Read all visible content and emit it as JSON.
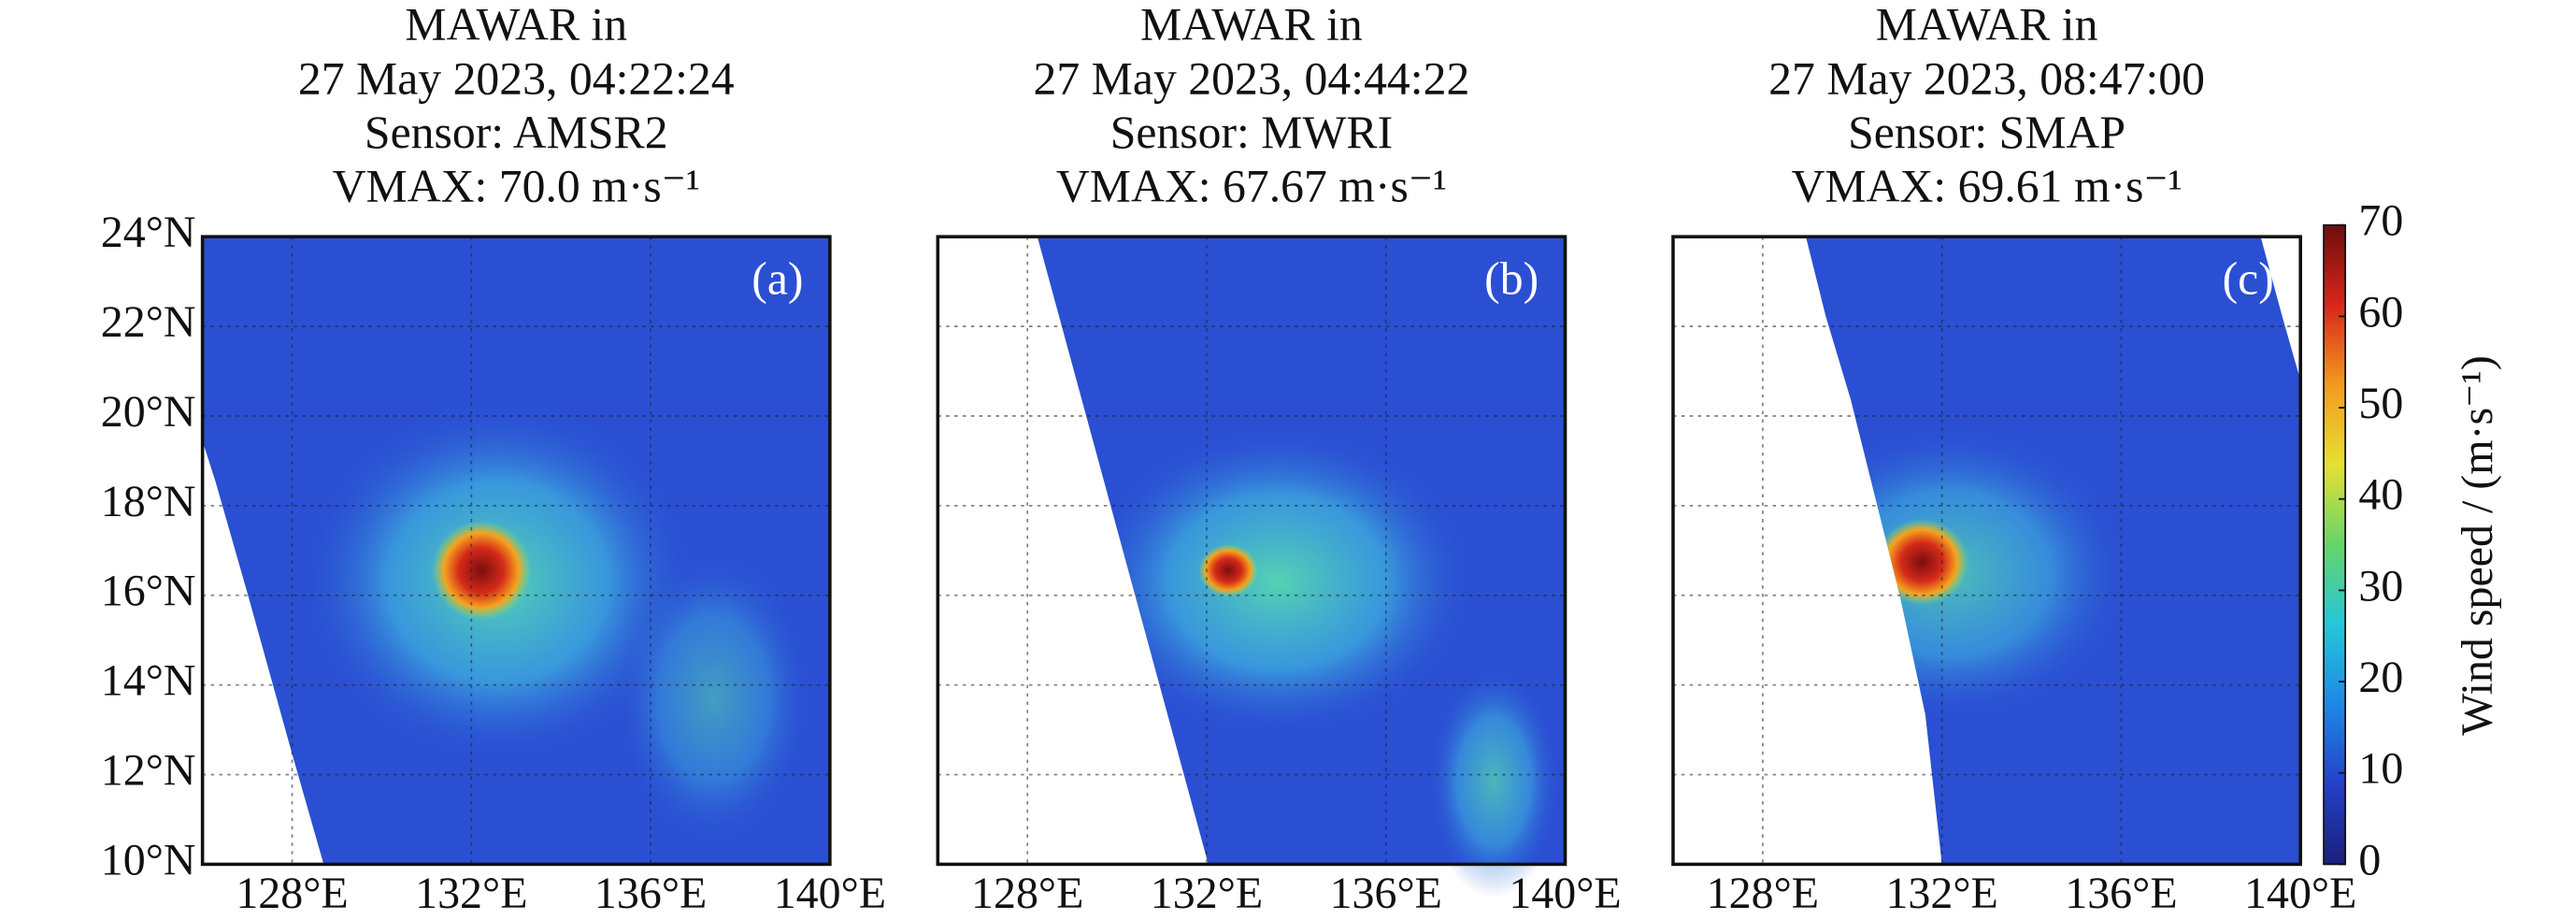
{
  "chart_data": [
    {
      "type": "heatmap",
      "panel_label": "(a)",
      "title_lines": [
        "MAWAR in",
        "27 May 2023, 04:22:24",
        "Sensor: AMSR2",
        "VMAX: 70.0 m·s⁻¹"
      ],
      "xlim": [
        126,
        140
      ],
      "xticks": [
        {
          "value": 128,
          "label": "128°E"
        },
        {
          "value": 132,
          "label": "132°E"
        },
        {
          "value": 136,
          "label": "136°E"
        },
        {
          "value": 140,
          "label": "140°E"
        }
      ],
      "ylim": [
        10,
        24
      ],
      "yticks": [
        {
          "value": 10,
          "label": "10°N"
        },
        {
          "value": 12,
          "label": "12°N"
        },
        {
          "value": 14,
          "label": "14°N"
        },
        {
          "value": 16,
          "label": "16°N"
        },
        {
          "value": 18,
          "label": "18°N"
        },
        {
          "value": 20,
          "label": "20°N"
        },
        {
          "value": 22,
          "label": "22°N"
        },
        {
          "value": 24,
          "label": "24°N"
        }
      ],
      "grid": true
    },
    {
      "type": "heatmap",
      "panel_label": "(b)",
      "title_lines": [
        "MAWAR in",
        "27 May 2023, 04:44:22",
        "Sensor: MWRI",
        "VMAX: 67.67 m·s⁻¹"
      ],
      "xlim": [
        126,
        140
      ],
      "xticks": [
        {
          "value": 128,
          "label": "128°E"
        },
        {
          "value": 132,
          "label": "132°E"
        },
        {
          "value": 136,
          "label": "136°E"
        },
        {
          "value": 140,
          "label": "140°E"
        }
      ],
      "ylim": [
        10,
        24
      ],
      "yticks": [
        10,
        12,
        14,
        16,
        18,
        20,
        22,
        24
      ],
      "grid": true
    },
    {
      "type": "heatmap",
      "panel_label": "(c)",
      "title_lines": [
        "MAWAR in",
        "27 May 2023, 08:47:00",
        "Sensor: SMAP",
        "VMAX: 69.61 m·s⁻¹"
      ],
      "xlim": [
        126,
        140
      ],
      "xticks": [
        {
          "value": 128,
          "label": "128°E"
        },
        {
          "value": 132,
          "label": "132°E"
        },
        {
          "value": 136,
          "label": "136°E"
        },
        {
          "value": 140,
          "label": "140°E"
        }
      ],
      "ylim": [
        10,
        24
      ],
      "yticks": [
        10,
        12,
        14,
        16,
        18,
        20,
        22,
        24
      ],
      "grid": true
    },
    {
      "type": "colorbar",
      "label": "Wind speed / (m·s⁻¹)",
      "ylim": [
        0,
        70
      ],
      "yticks": [
        0,
        10,
        20,
        30,
        40,
        50,
        60,
        70
      ],
      "colormap": [
        "#1a1f7a",
        "#2440c8",
        "#1e88e5",
        "#26c6da",
        "#66d46a",
        "#e6e033",
        "#f39a1f",
        "#d8261b",
        "#6e0d0d"
      ]
    }
  ]
}
